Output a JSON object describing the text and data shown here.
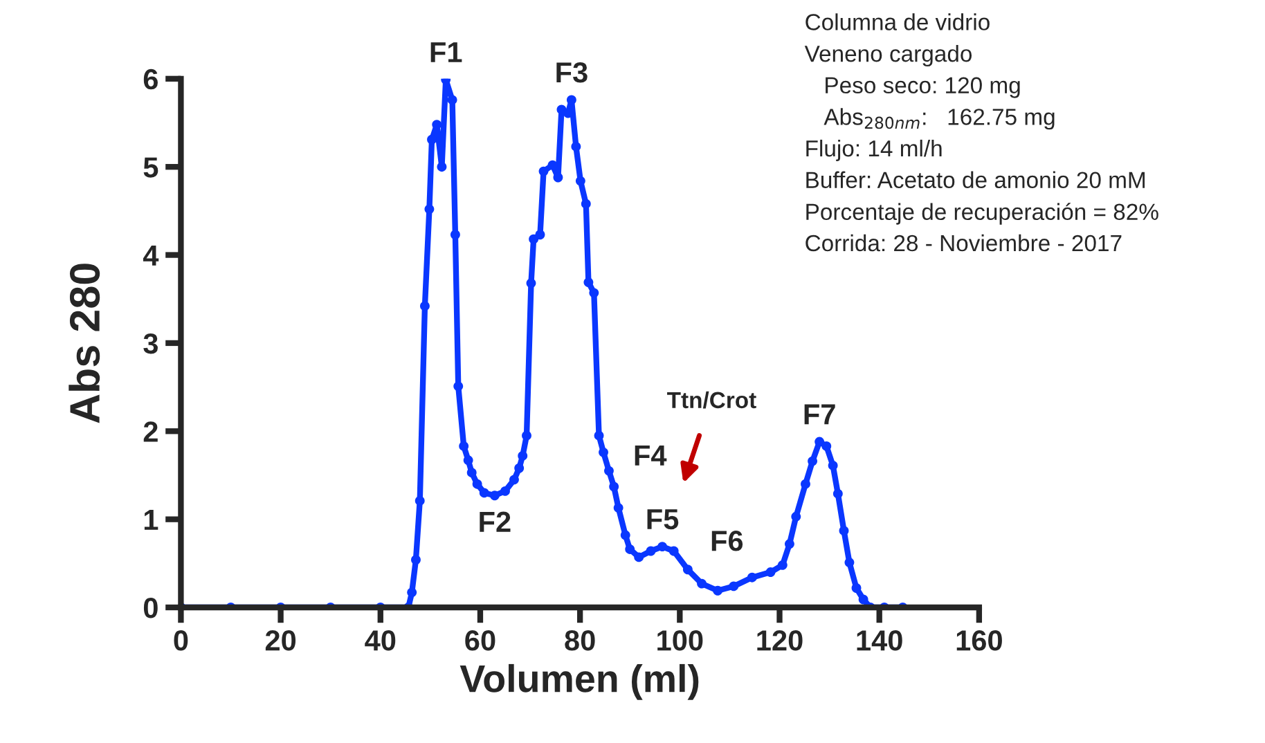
{
  "chart_data": {
    "type": "line",
    "xlabel": "Volumen (ml)",
    "ylabel": "Abs 280",
    "x": [
      0,
      10,
      20,
      30,
      40,
      45.6,
      46.3,
      47.1,
      47.9,
      48.9,
      49.8,
      50.3,
      51.3,
      52.3,
      53.1,
      54.4,
      55.0,
      55.6,
      56.7,
      57.6,
      58.3,
      59.4,
      60.8,
      62.9,
      65.0,
      66.8,
      67.8,
      68.5,
      69.3,
      70.2,
      70.7,
      72.0,
      72.7,
      74.5,
      75.6,
      76.3,
      77.6,
      78.3,
      79.2,
      80.1,
      81.2,
      81.7,
      82.8,
      83.8,
      84.7,
      85.8,
      86.8,
      87.7,
      89.1,
      90.0,
      91.8,
      94.2,
      96.5,
      98.8,
      101.6,
      104.4,
      107.6,
      110.8,
      114.5,
      118.2,
      120.6,
      122.0,
      123.3,
      125.2,
      126.6,
      128.0,
      129.4,
      130.7,
      131.7,
      132.9,
      134.0,
      135.4,
      136.8,
      138.2,
      141,
      144.7
    ],
    "series": [
      {
        "color": "#0a37ff",
        "values": [
          0,
          0,
          0,
          0,
          0,
          0,
          0.17,
          0.54,
          1.21,
          3.42,
          4.52,
          5.31,
          5.48,
          5.0,
          5.99,
          5.76,
          4.23,
          2.51,
          1.83,
          1.67,
          1.53,
          1.4,
          1.3,
          1.27,
          1.32,
          1.45,
          1.58,
          1.72,
          1.95,
          3.68,
          4.18,
          4.23,
          4.95,
          5.02,
          4.88,
          5.65,
          5.61,
          5.76,
          5.23,
          4.84,
          4.58,
          3.69,
          3.57,
          1.95,
          1.76,
          1.55,
          1.37,
          1.13,
          0.82,
          0.66,
          0.57,
          0.64,
          0.69,
          0.64,
          0.43,
          0.27,
          0.19,
          0.24,
          0.34,
          0.4,
          0.48,
          0.72,
          1.03,
          1.4,
          1.66,
          1.88,
          1.83,
          1.61,
          1.29,
          0.87,
          0.51,
          0.22,
          0.09,
          0,
          0,
          0
        ]
      }
    ],
    "marker": "circle",
    "line_style": "solid",
    "xlim": [
      0,
      160
    ],
    "xticks": [
      0,
      20,
      40,
      60,
      80,
      100,
      120,
      140,
      160
    ],
    "ylim": [
      0,
      6
    ],
    "yticks": [
      0,
      1,
      2,
      3,
      4,
      5,
      6
    ],
    "grid": false,
    "legend": false,
    "annotations": [
      {
        "text": "F1",
        "x": 53.1,
        "y": 5.99
      },
      {
        "text": "F2",
        "x": 62.9,
        "y": 1.27
      },
      {
        "text": "F3",
        "x": 78.3,
        "y": 5.76
      },
      {
        "text": "F4",
        "x": 86.8,
        "y": 1.37
      },
      {
        "text": "F5",
        "x": 96.5,
        "y": 0.69
      },
      {
        "text": "F6",
        "x": 118.2,
        "y": 0.4
      },
      {
        "text": "F7",
        "x": 128.0,
        "y": 1.88
      },
      "Ttn/Crot",
      "Columna de vidrio",
      "Veneno cargado",
      "   Peso seco: 120 mg",
      "   Abs$_{280nm}$:   162.75 mg",
      "Flujo: 14 ml/h",
      "Buffer: Acetato de amonio 20 mM",
      "Porcentaje de recuperación = 82%",
      "Corrida: 28 - Noviembre - 2017"
    ]
  }
}
